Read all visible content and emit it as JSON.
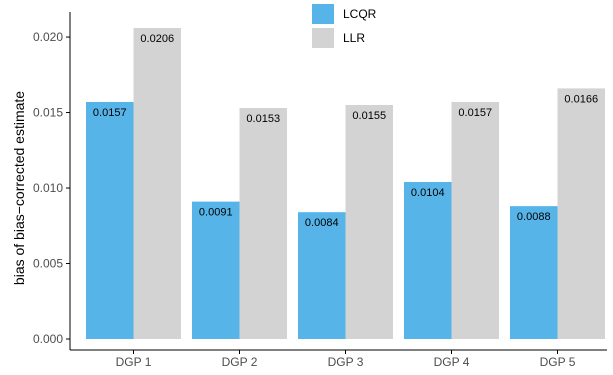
{
  "chart_data": {
    "type": "bar",
    "title": "",
    "xlabel": "",
    "ylabel": "bias of bias−corrected estimate",
    "categories": [
      "DGP 1",
      "DGP 2",
      "DGP 3",
      "DGP 4",
      "DGP 5"
    ],
    "series": [
      {
        "name": "LCQR",
        "color": "#56B4E9",
        "values": [
          0.0157,
          0.0091,
          0.0084,
          0.0104,
          0.0088
        ],
        "labels": [
          "0.0157",
          "0.0091",
          "0.0084",
          "0.0104",
          "0.0088"
        ]
      },
      {
        "name": "LLR",
        "color": "#D3D3D3",
        "values": [
          0.0206,
          0.0153,
          0.0155,
          0.0157,
          0.0166
        ],
        "labels": [
          "0.0206",
          "0.0153",
          "0.0155",
          "0.0157",
          "0.0166"
        ]
      }
    ],
    "ylim": [
      0,
      0.0206
    ],
    "yticks": [
      0,
      0.005,
      0.01,
      0.015,
      0.02
    ],
    "ytick_labels": [
      "0.000",
      "0.005",
      "0.010",
      "0.015",
      "0.020"
    ],
    "grid": false,
    "legend_position": "top-center",
    "data_labels": true
  }
}
